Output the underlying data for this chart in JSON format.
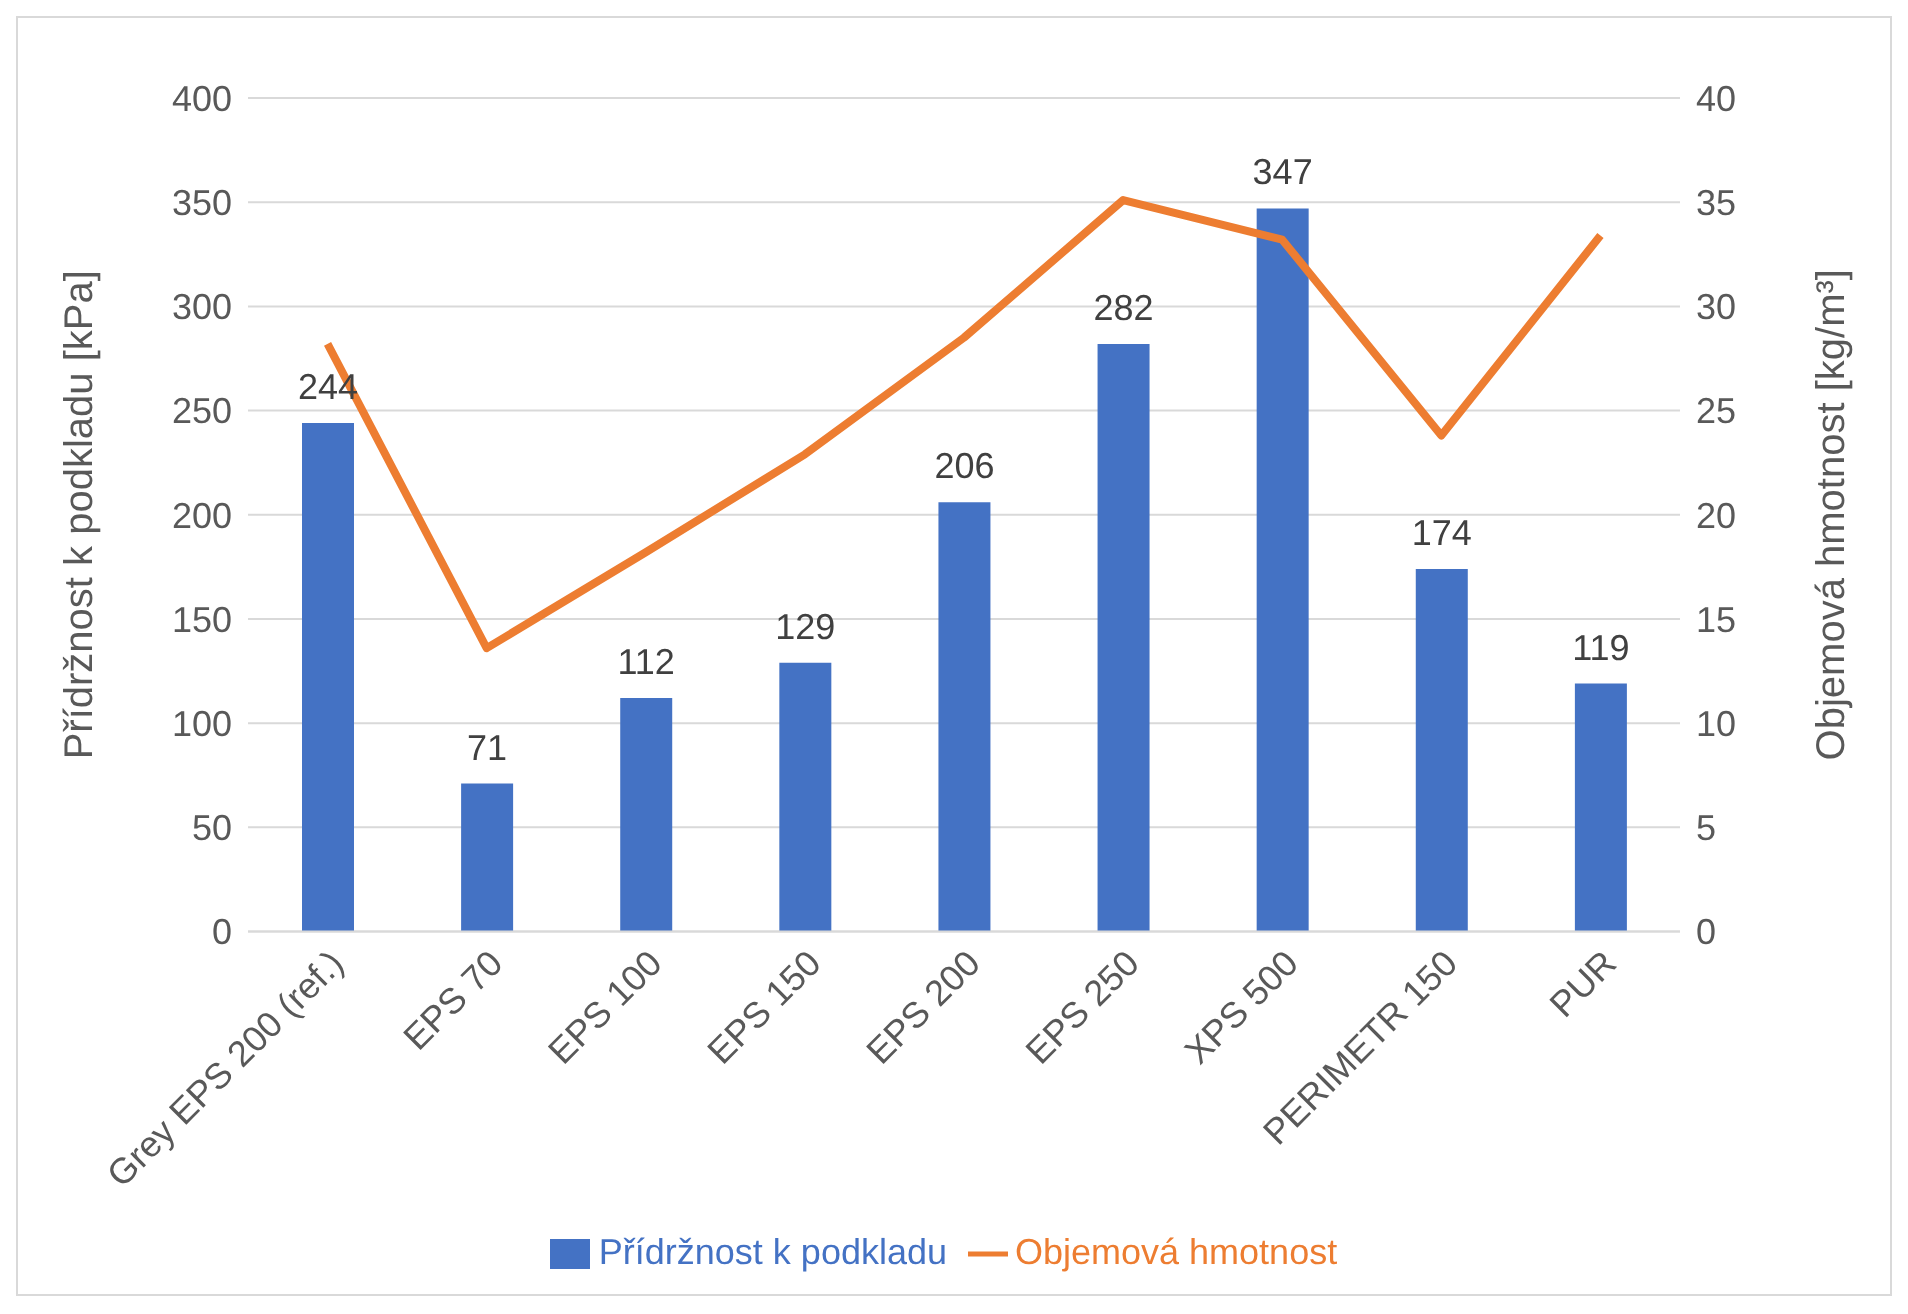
{
  "chart_data": {
    "type": "bar",
    "categories": [
      "Grey EPS 200 (ref.)",
      "EPS 70",
      "EPS 100",
      "EPS 150",
      "EPS 200",
      "EPS 250",
      "XPS 500",
      "PERIMETR 150",
      "PUR"
    ],
    "series": [
      {
        "name": "Přídržnost k podkladu",
        "color": "#4472c4",
        "values": [
          244,
          71,
          112,
          129,
          206,
          282,
          347,
          174,
          119
        ],
        "value_labels": [
          "244",
          "71",
          "112",
          "129",
          "206",
          "282",
          "347",
          "174",
          "119"
        ]
      },
      {
        "name": "Objemová hmotnost",
        "type": "line",
        "axis": "y2",
        "color": "#ed7d31",
        "marker": "none",
        "values": [
          28.2,
          13.6,
          18.2,
          22.9,
          28.5,
          35.1,
          33.2,
          23.8,
          33.4
        ]
      }
    ],
    "ylabel": "Přídržnost k podkladu [kPa]",
    "y2label": "Objemová hmotnost [kg/m³]",
    "ylim": [
      0,
      400
    ],
    "yticks": [
      0,
      50,
      100,
      150,
      200,
      250,
      300,
      350,
      400
    ],
    "y2lim": [
      0,
      40
    ],
    "y2ticks": [
      0,
      5,
      10,
      15,
      20,
      25,
      30,
      35,
      40
    ],
    "grid": "y",
    "legend": "bottom"
  }
}
